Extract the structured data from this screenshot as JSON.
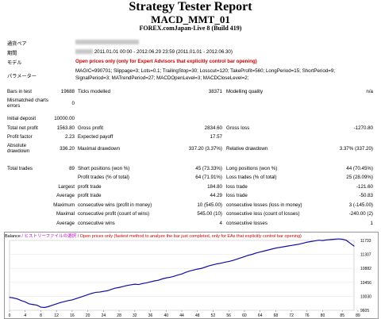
{
  "report": {
    "title": "Strategy Tester Report",
    "subtitle": "MACD_MMT_01",
    "server": "FOREX.comJapan-Live 8 (Build 419)"
  },
  "header": {
    "symbol_label": "通貨ペア",
    "period_label": "期間",
    "period_value": "2011.01.01 00:00 - 2012.06.29 23:59 (2011.01.01 - 2012.06.30)",
    "model_label": "モデル",
    "model_value": "Open prices only (only for Expert Advisors that explicitly control bar opening)",
    "params_label": "パラメーター",
    "params_line1": "MAGIC=990701; Slippage=3; Lots=0.1; TrailingStop=30; Losscut=120; TakeProfit=560; LongPeriod=15; ShortPeriod=9;",
    "params_line2": "SignalPeriod=3; MATrendPeriod=27; MACDOpenLevel=3; MACDCloseLevel=2;"
  },
  "stats": {
    "bars_label": "Bars in test",
    "bars": "19688",
    "ticks_label": "Ticks modelled",
    "ticks": "38371",
    "quality_label": "Modelling quality",
    "quality": "n/a",
    "mismatch_label_1": "Mismatched charts",
    "mismatch_label_2": "errors",
    "mismatch": "0",
    "deposit_label": "Initial deposit",
    "deposit": "10000.00",
    "net_label": "Total net profit",
    "net": "1563.80",
    "gross_profit_label": "Gross profit",
    "gross_profit": "2834.60",
    "gross_loss_label": "Gross loss",
    "gross_loss": "-1270.80",
    "pf_label": "Profit factor",
    "pf": "2.23",
    "payoff_label": "Expected payoff",
    "payoff": "17.57",
    "abs_dd_label_1": "Absolute",
    "abs_dd_label_2": "drawdown",
    "abs_dd": "336.20",
    "max_dd_label": "Maximal drawdown",
    "max_dd": "337.20 (3.37%)",
    "rel_dd_label": "Relative drawdown",
    "rel_dd": "3.37% (337.20)",
    "trades_label": "Total trades",
    "trades": "89",
    "short_label": "Short positions (won %)",
    "short": "45 (73.33%)",
    "long_label": "Long positions (won %)",
    "long": "44 (70.45%)",
    "pt_label": "Profit trades (% of total)",
    "pt": "64 (71.91%)",
    "lt_label": "Loss trades (% of total)",
    "lt": "25 (28.09%)",
    "largest_label": "Largest",
    "largest_pt_label": "profit trade",
    "largest_pt": "184.80",
    "largest_lt_label": "loss trade",
    "largest_lt": "-121.60",
    "average_label": "Average",
    "average_pt_label": "profit trade",
    "average_pt": "44.29",
    "average_lt_label": "loss trade",
    "average_lt": "-50.83",
    "maximum_label": "Maximum",
    "max_cw_label": "consecutive wins (profit in money)",
    "max_cw": "10 (545.00)",
    "max_cl_label": "consecutive losses (loss in money)",
    "max_cl": "3 (-145.00)",
    "maximal_label": "Maximal",
    "mxl_cp_label": "consecutive profit (count of wins)",
    "mxl_cp": "545.00 (10)",
    "mxl_cl_label": "consecutive loss (count of losses)",
    "mxl_cl": "-240.00 (2)",
    "avg_label": "Average",
    "avg_cw_label": "consecutive wins",
    "avg_cw": "4",
    "avg_cl_label": "consecutive losses",
    "avg_cl": "1"
  },
  "chart_head": {
    "balance": "Balance",
    "history": "ヒストリーファイルの選択",
    "note": "Open prices only (fastest method to analyze the bar just completed, only for EAs that explicitly control bar opening)"
  },
  "chart_data": {
    "type": "line",
    "series": [
      {
        "name": "Balance",
        "color": "#1010a0",
        "values": [
          10000,
          9980,
          9950,
          9900,
          9860,
          9800,
          9780,
          9760,
          9700,
          9690,
          9720,
          9760,
          9800,
          9840,
          9870,
          9900,
          9920,
          9960,
          10000,
          10040,
          10080,
          10120,
          10150,
          10160,
          10180,
          10200,
          10240,
          10280,
          10300,
          10330,
          10360,
          10380,
          10400,
          10390,
          10420,
          10440,
          10470,
          10500,
          10520,
          10560,
          10590,
          10610,
          10640,
          10680,
          10710,
          10760,
          10800,
          10830,
          10860,
          10880,
          10920,
          10960,
          10990,
          11020,
          11040,
          11070,
          11090,
          11120,
          11160,
          11200,
          11240,
          11280,
          11310,
          11350,
          11380,
          11410,
          11440,
          11470,
          11500,
          11520,
          11540,
          11560,
          11580,
          11600,
          11620,
          11650,
          11680,
          11700,
          11720,
          11740,
          11730,
          11750,
          11760,
          11770,
          11780,
          11770,
          11740,
          11650,
          11560
        ]
      }
    ],
    "x_ticks": [
      "0",
      "4",
      "8",
      "12",
      "16",
      "20",
      "24",
      "28",
      "32",
      "36",
      "40",
      "44",
      "48",
      "52",
      "56",
      "60",
      "64",
      "68",
      "72",
      "76",
      "80",
      "85",
      "89"
    ],
    "y_ticks": [
      "11733",
      "11307",
      "10882",
      "10456",
      "10030",
      "9605"
    ],
    "ylim": [
      9605,
      11733
    ]
  }
}
